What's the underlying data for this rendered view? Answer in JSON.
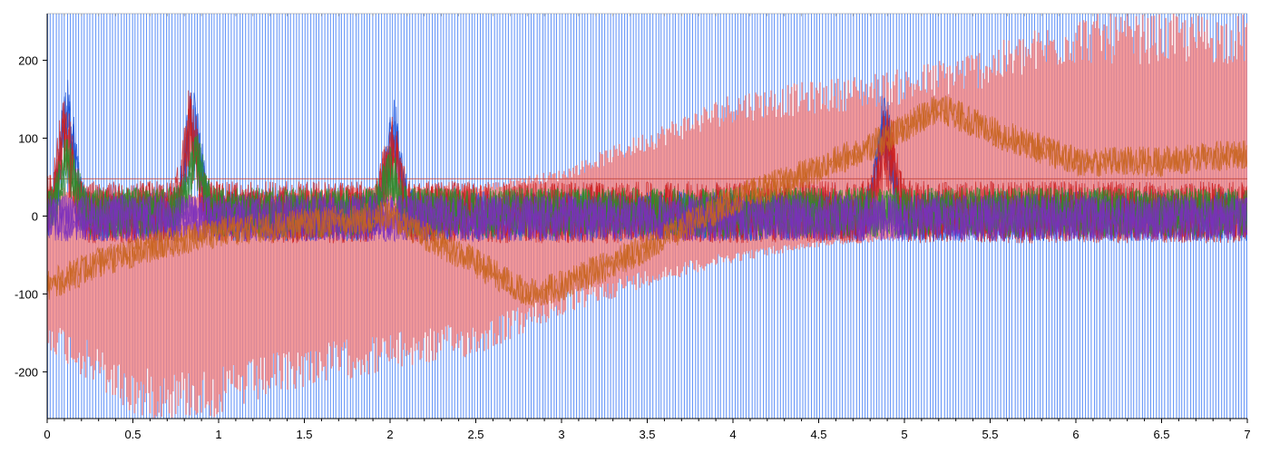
{
  "chart_data": {
    "type": "line",
    "title": "",
    "xlabel": "",
    "ylabel": "",
    "xlim": [
      0,
      7
    ],
    "ylim": [
      -260,
      260
    ],
    "x_ticks": [
      "0",
      "0.5",
      "1",
      "1.5",
      "2",
      "2.5",
      "3",
      "3.5",
      "4",
      "4.5",
      "5",
      "5.5",
      "6",
      "6.5",
      "7"
    ],
    "x_tick_values": [
      0,
      0.5,
      1,
      1.5,
      2,
      2.5,
      3,
      3.5,
      4,
      4.5,
      5,
      5.5,
      6,
      6.5,
      7
    ],
    "y_ticks": [
      "200",
      "100",
      "0",
      "-100",
      "-200"
    ],
    "y_tick_values": [
      200,
      100,
      0,
      -100,
      -200
    ],
    "grid": false,
    "legend": "none",
    "threshold_line": {
      "value": 48,
      "color": "#c0392b"
    },
    "series": [
      {
        "color": "#4f86f7",
        "style": "oscillation spanning full range (clipped)",
        "amplitude_envelope": {
          "x": [
            0,
            7
          ],
          "upper": [
            260,
            260
          ],
          "lower": [
            -260,
            -260
          ]
        }
      },
      {
        "color": "#f08080",
        "style": "oscillation with drifting envelope",
        "upper_envelope": {
          "x": [
            0,
            0.5,
            1,
            1.5,
            2,
            2.5,
            3,
            3.5,
            4,
            4.5,
            5,
            5.5,
            6,
            6.5,
            7
          ],
          "y": [
            40,
            30,
            30,
            35,
            40,
            40,
            60,
            110,
            160,
            175,
            190,
            220,
            260,
            260,
            260
          ]
        },
        "lower_envelope": {
          "x": [
            0,
            0.5,
            1,
            1.5,
            2,
            2.5,
            3,
            3.5,
            4,
            4.5,
            5,
            5.5,
            6,
            6.5,
            7
          ],
          "y": [
            -170,
            -260,
            -260,
            -220,
            -200,
            -180,
            -130,
            -90,
            -60,
            -40,
            -30,
            -20,
            -15,
            -10,
            -10
          ]
        }
      },
      {
        "color": "#1a4fd6",
        "style": "noisy trace",
        "peaks": [
          {
            "x": 0.12,
            "y": 155
          },
          {
            "x": 0.85,
            "y": 145
          },
          {
            "x": 2.02,
            "y": 125
          },
          {
            "x": 4.88,
            "y": 140
          }
        ],
        "noise_band": [
          -40,
          40
        ]
      },
      {
        "color": "#cc1f1f",
        "style": "noisy trace",
        "peaks": [
          {
            "x": 0.1,
            "y": 120
          },
          {
            "x": 0.84,
            "y": 130
          },
          {
            "x": 2.01,
            "y": 100
          },
          {
            "x": 4.9,
            "y": 120
          }
        ],
        "noise_band": [
          -45,
          55
        ]
      },
      {
        "color": "#2e8b2e",
        "style": "noisy trace",
        "peaks": [
          {
            "x": 0.12,
            "y": 80
          },
          {
            "x": 0.86,
            "y": 90
          },
          {
            "x": 2.0,
            "y": 60
          }
        ],
        "noise_band": [
          -35,
          45
        ]
      },
      {
        "color": "#c8641e",
        "style": "slow drift trace",
        "path": {
          "x": [
            0,
            0.3,
            0.6,
            1,
            1.5,
            2,
            2.5,
            2.8,
            3,
            3.5,
            4,
            4.5,
            4.9,
            5.2,
            5.5,
            6,
            6.5,
            7
          ],
          "y": [
            -90,
            -60,
            -40,
            -20,
            -10,
            0,
            -60,
            -100,
            -90,
            -40,
            20,
            60,
            100,
            140,
            110,
            70,
            70,
            80
          ]
        }
      },
      {
        "color": "#7b2fbe",
        "style": "noisy trace",
        "noise_band": [
          -40,
          35
        ]
      }
    ]
  }
}
